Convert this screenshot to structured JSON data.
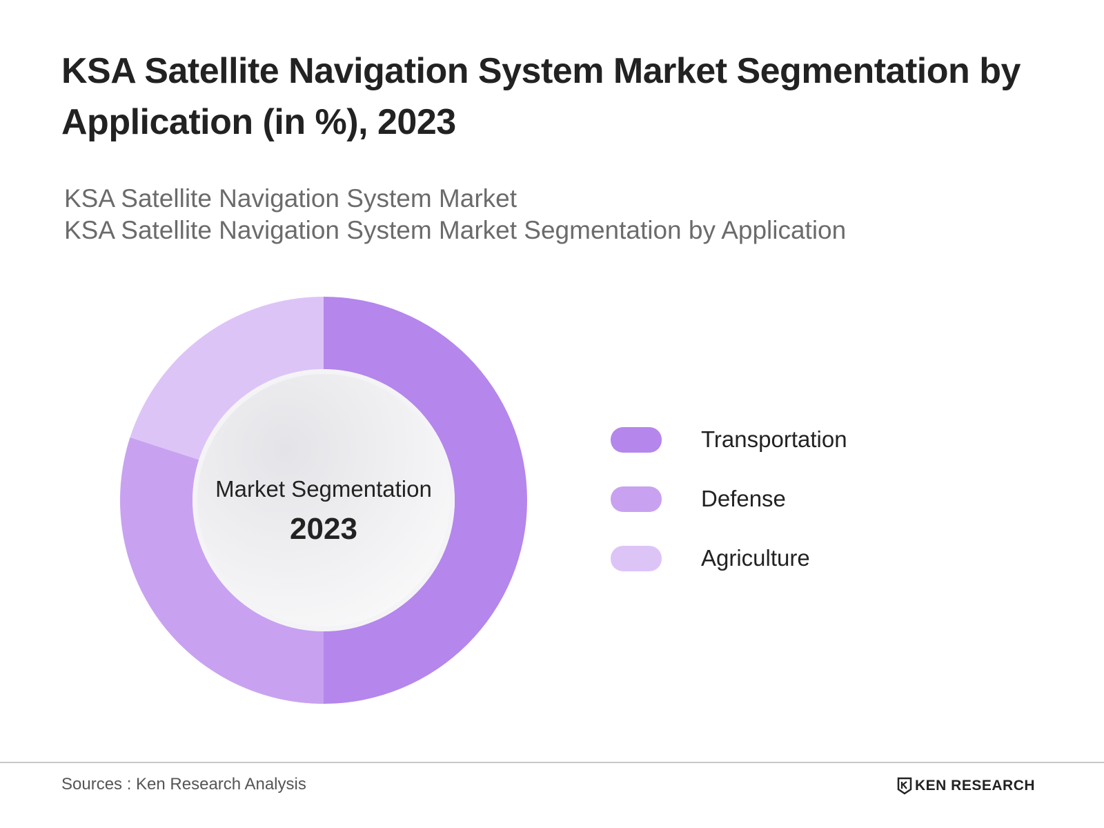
{
  "title": "KSA Satellite Navigation System Market Segmentation by Application (in %), 2023",
  "subtitles": [
    "KSA Satellite Navigation System Market",
    "KSA Satellite Navigation System Market Segmentation by Application"
  ],
  "chart_data": {
    "type": "pie",
    "donut": true,
    "center_label": "Market Segmentation",
    "center_value": "2023",
    "categories": [
      "Transportation",
      "Defense",
      "Agriculture"
    ],
    "values": [
      50,
      30,
      20
    ],
    "colors": [
      "#b586ec",
      "#c8a2f0",
      "#ddc4f7"
    ],
    "legend_position": "right"
  },
  "footer": {
    "source": "Sources : Ken Research Analysis",
    "brand": "KEN RESEARCH"
  }
}
